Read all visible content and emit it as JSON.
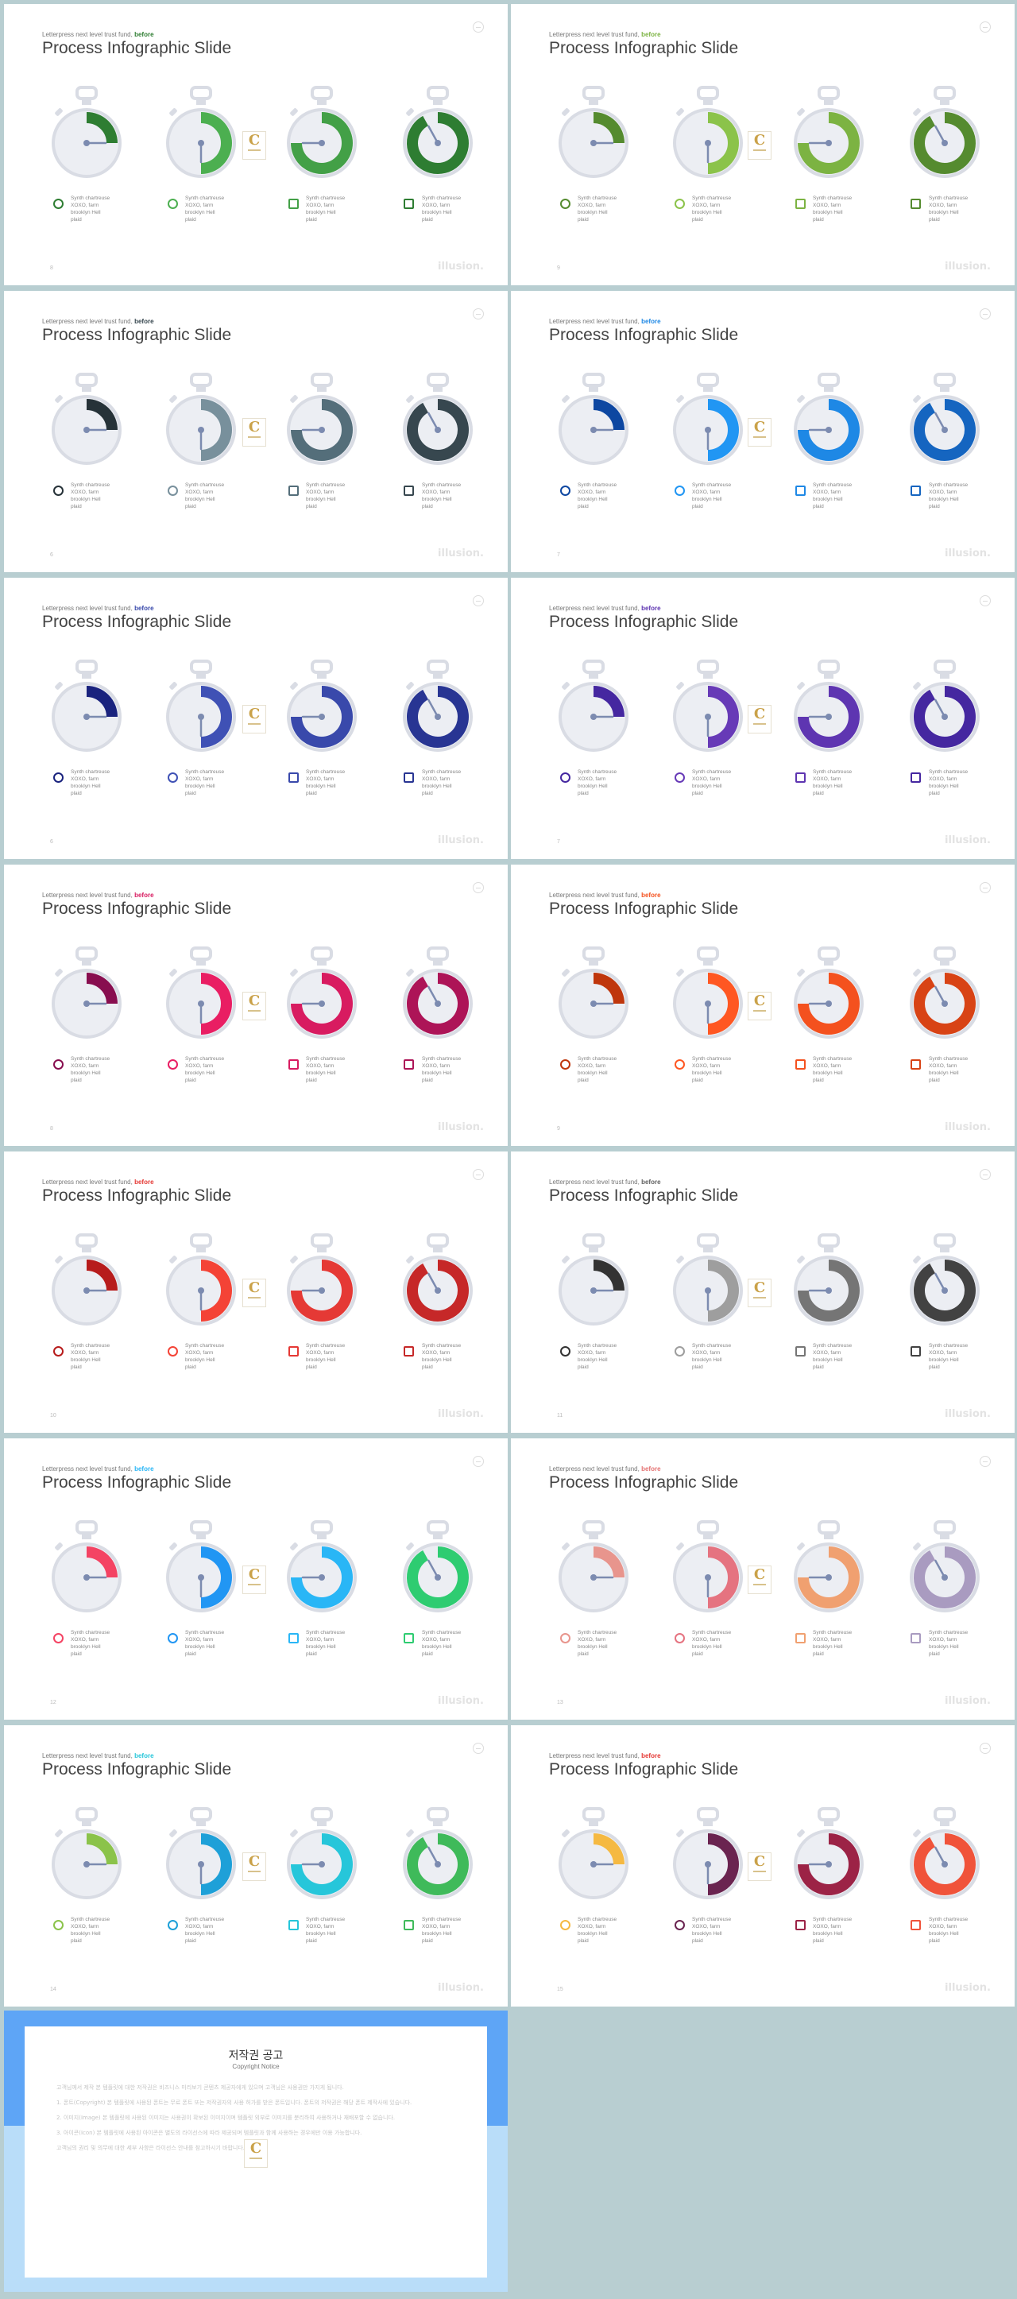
{
  "slides": [
    {
      "subtitle": "Letterpress next level trust fund",
      "subtitle_hl": "before",
      "hl_color": "#2e7d32",
      "title": "Process Infographic Slide",
      "page": "8",
      "brand": "illusion.",
      "colors": [
        "#2e7d32",
        "#4caf50",
        "#43a047",
        "#2e7d32"
      ]
    },
    {
      "subtitle": "Letterpress next level trust fund",
      "subtitle_hl": "before",
      "hl_color": "#7cb342",
      "title": "Process Infographic Slide",
      "page": "9",
      "brand": "illusion.",
      "colors": [
        "#558b2f",
        "#8bc34a",
        "#7cb342",
        "#558b2f"
      ]
    },
    {
      "subtitle": "Letterpress next level trust fund",
      "subtitle_hl": "before",
      "hl_color": "#37474f",
      "title": "Process Infographic Slide",
      "page": "6",
      "brand": "illusion.",
      "colors": [
        "#263238",
        "#78909c",
        "#546e7a",
        "#37474f"
      ]
    },
    {
      "subtitle": "Letterpress next level trust fund",
      "subtitle_hl": "before",
      "hl_color": "#1e88e5",
      "title": "Process Infographic Slide",
      "page": "7",
      "brand": "illusion.",
      "colors": [
        "#0d47a1",
        "#2196f3",
        "#1e88e5",
        "#1565c0"
      ]
    },
    {
      "subtitle": "Letterpress next level trust fund",
      "subtitle_hl": "before",
      "hl_color": "#3949ab",
      "title": "Process Infographic Slide",
      "page": "6",
      "brand": "illusion.",
      "colors": [
        "#1a237e",
        "#3f51b5",
        "#3949ab",
        "#283593"
      ]
    },
    {
      "subtitle": "Letterpress next level trust fund",
      "subtitle_hl": "before",
      "hl_color": "#5e35b1",
      "title": "Process Infographic Slide",
      "page": "7",
      "brand": "illusion.",
      "colors": [
        "#4527a0",
        "#673ab7",
        "#5e35b1",
        "#4527a0"
      ]
    },
    {
      "subtitle": "Letterpress next level trust fund",
      "subtitle_hl": "before",
      "hl_color": "#d81b60",
      "title": "Process Infographic Slide",
      "page": "8",
      "brand": "illusion.",
      "colors": [
        "#880e4f",
        "#e91e63",
        "#d81b60",
        "#ad1457"
      ]
    },
    {
      "subtitle": "Letterpress next level trust fund",
      "subtitle_hl": "before",
      "hl_color": "#f4511e",
      "title": "Process Infographic Slide",
      "page": "9",
      "brand": "illusion.",
      "colors": [
        "#bf360c",
        "#ff5722",
        "#f4511e",
        "#d84315"
      ]
    },
    {
      "subtitle": "Letterpress next level trust fund",
      "subtitle_hl": "before",
      "hl_color": "#e53935",
      "title": "Process Infographic Slide",
      "page": "10",
      "brand": "illusion.",
      "colors": [
        "#b71c1c",
        "#f44336",
        "#e53935",
        "#c62828"
      ]
    },
    {
      "subtitle": "Letterpress next level trust fund",
      "subtitle_hl": "before",
      "hl_color": "#616161",
      "title": "Process Infographic Slide",
      "page": "11",
      "brand": "illusion.",
      "colors": [
        "#333333",
        "#9e9e9e",
        "#757575",
        "#424242"
      ]
    },
    {
      "subtitle": "Letterpress next level trust fund",
      "subtitle_hl": "before",
      "hl_color": "#29b6f6",
      "title": "Process Infographic Slide",
      "page": "12",
      "brand": "illusion.",
      "colors": [
        "#f44363",
        "#2196f3",
        "#29b6f6",
        "#2ecc71"
      ]
    },
    {
      "subtitle": "Letterpress next level trust fund",
      "subtitle_hl": "before",
      "hl_color": "#e57373",
      "title": "Process Infographic Slide",
      "page": "13",
      "brand": "illusion.",
      "colors": [
        "#e8958d",
        "#e57380",
        "#f0a070",
        "#a99bc0"
      ]
    },
    {
      "subtitle": "Letterpress next level trust fund",
      "subtitle_hl": "before",
      "hl_color": "#26c6da",
      "title": "Process Infographic Slide",
      "page": "14",
      "brand": "illusion.",
      "colors": [
        "#8bc34a",
        "#1ea0d8",
        "#26c6da",
        "#3fba5a"
      ]
    },
    {
      "subtitle": "Letterpress next level trust fund",
      "subtitle_hl": "before",
      "hl_color": "#e53935",
      "title": "Process Infographic Slide",
      "page": "15",
      "brand": "illusion.",
      "colors": [
        "#f5b942",
        "#6a2450",
        "#9c2346",
        "#f0533a"
      ]
    }
  ],
  "item_text": "Synth chartreuse\nXOXO, farm\nbrooklyn Hell\nplaid",
  "progress": [
    0.25,
    0.5,
    0.75,
    0.92
  ],
  "copyright": {
    "title": "저작권 공고",
    "subtitle": "Copyright Notice",
    "paragraphs": [
      "고객님께서 제작 본 템플릿에 대한 저작권은 비즈니스 미리보기 콘텐츠 제공자에게 있으며 고객님은 사용권만 가지게 됩니다.",
      "1. 폰트(Copyright) 본 템플릿에 사용된 폰트는 무료 폰트 또는 저작권자의 사용 허가를 받은 폰트입니다. 폰트의 저작권은 해당 폰트 제작사에 있습니다.",
      "2. 이미지(Image) 본 템플릿에 사용된 이미지는 사용권이 확보된 이미지이며 템플릿 외부로 이미지를 분리하여 사용하거나 재배포할 수 없습니다.",
      "3. 아이콘(Icon) 본 템플릿에 사용된 아이콘은 별도의 라이선스에 따라 제공되며 템플릿과 함께 사용하는 경우에만 이용 가능합니다.",
      "고객님의 권리 및 의무에 대한 세부 사항은 라이선스 안내를 참고하시기 바랍니다."
    ]
  }
}
